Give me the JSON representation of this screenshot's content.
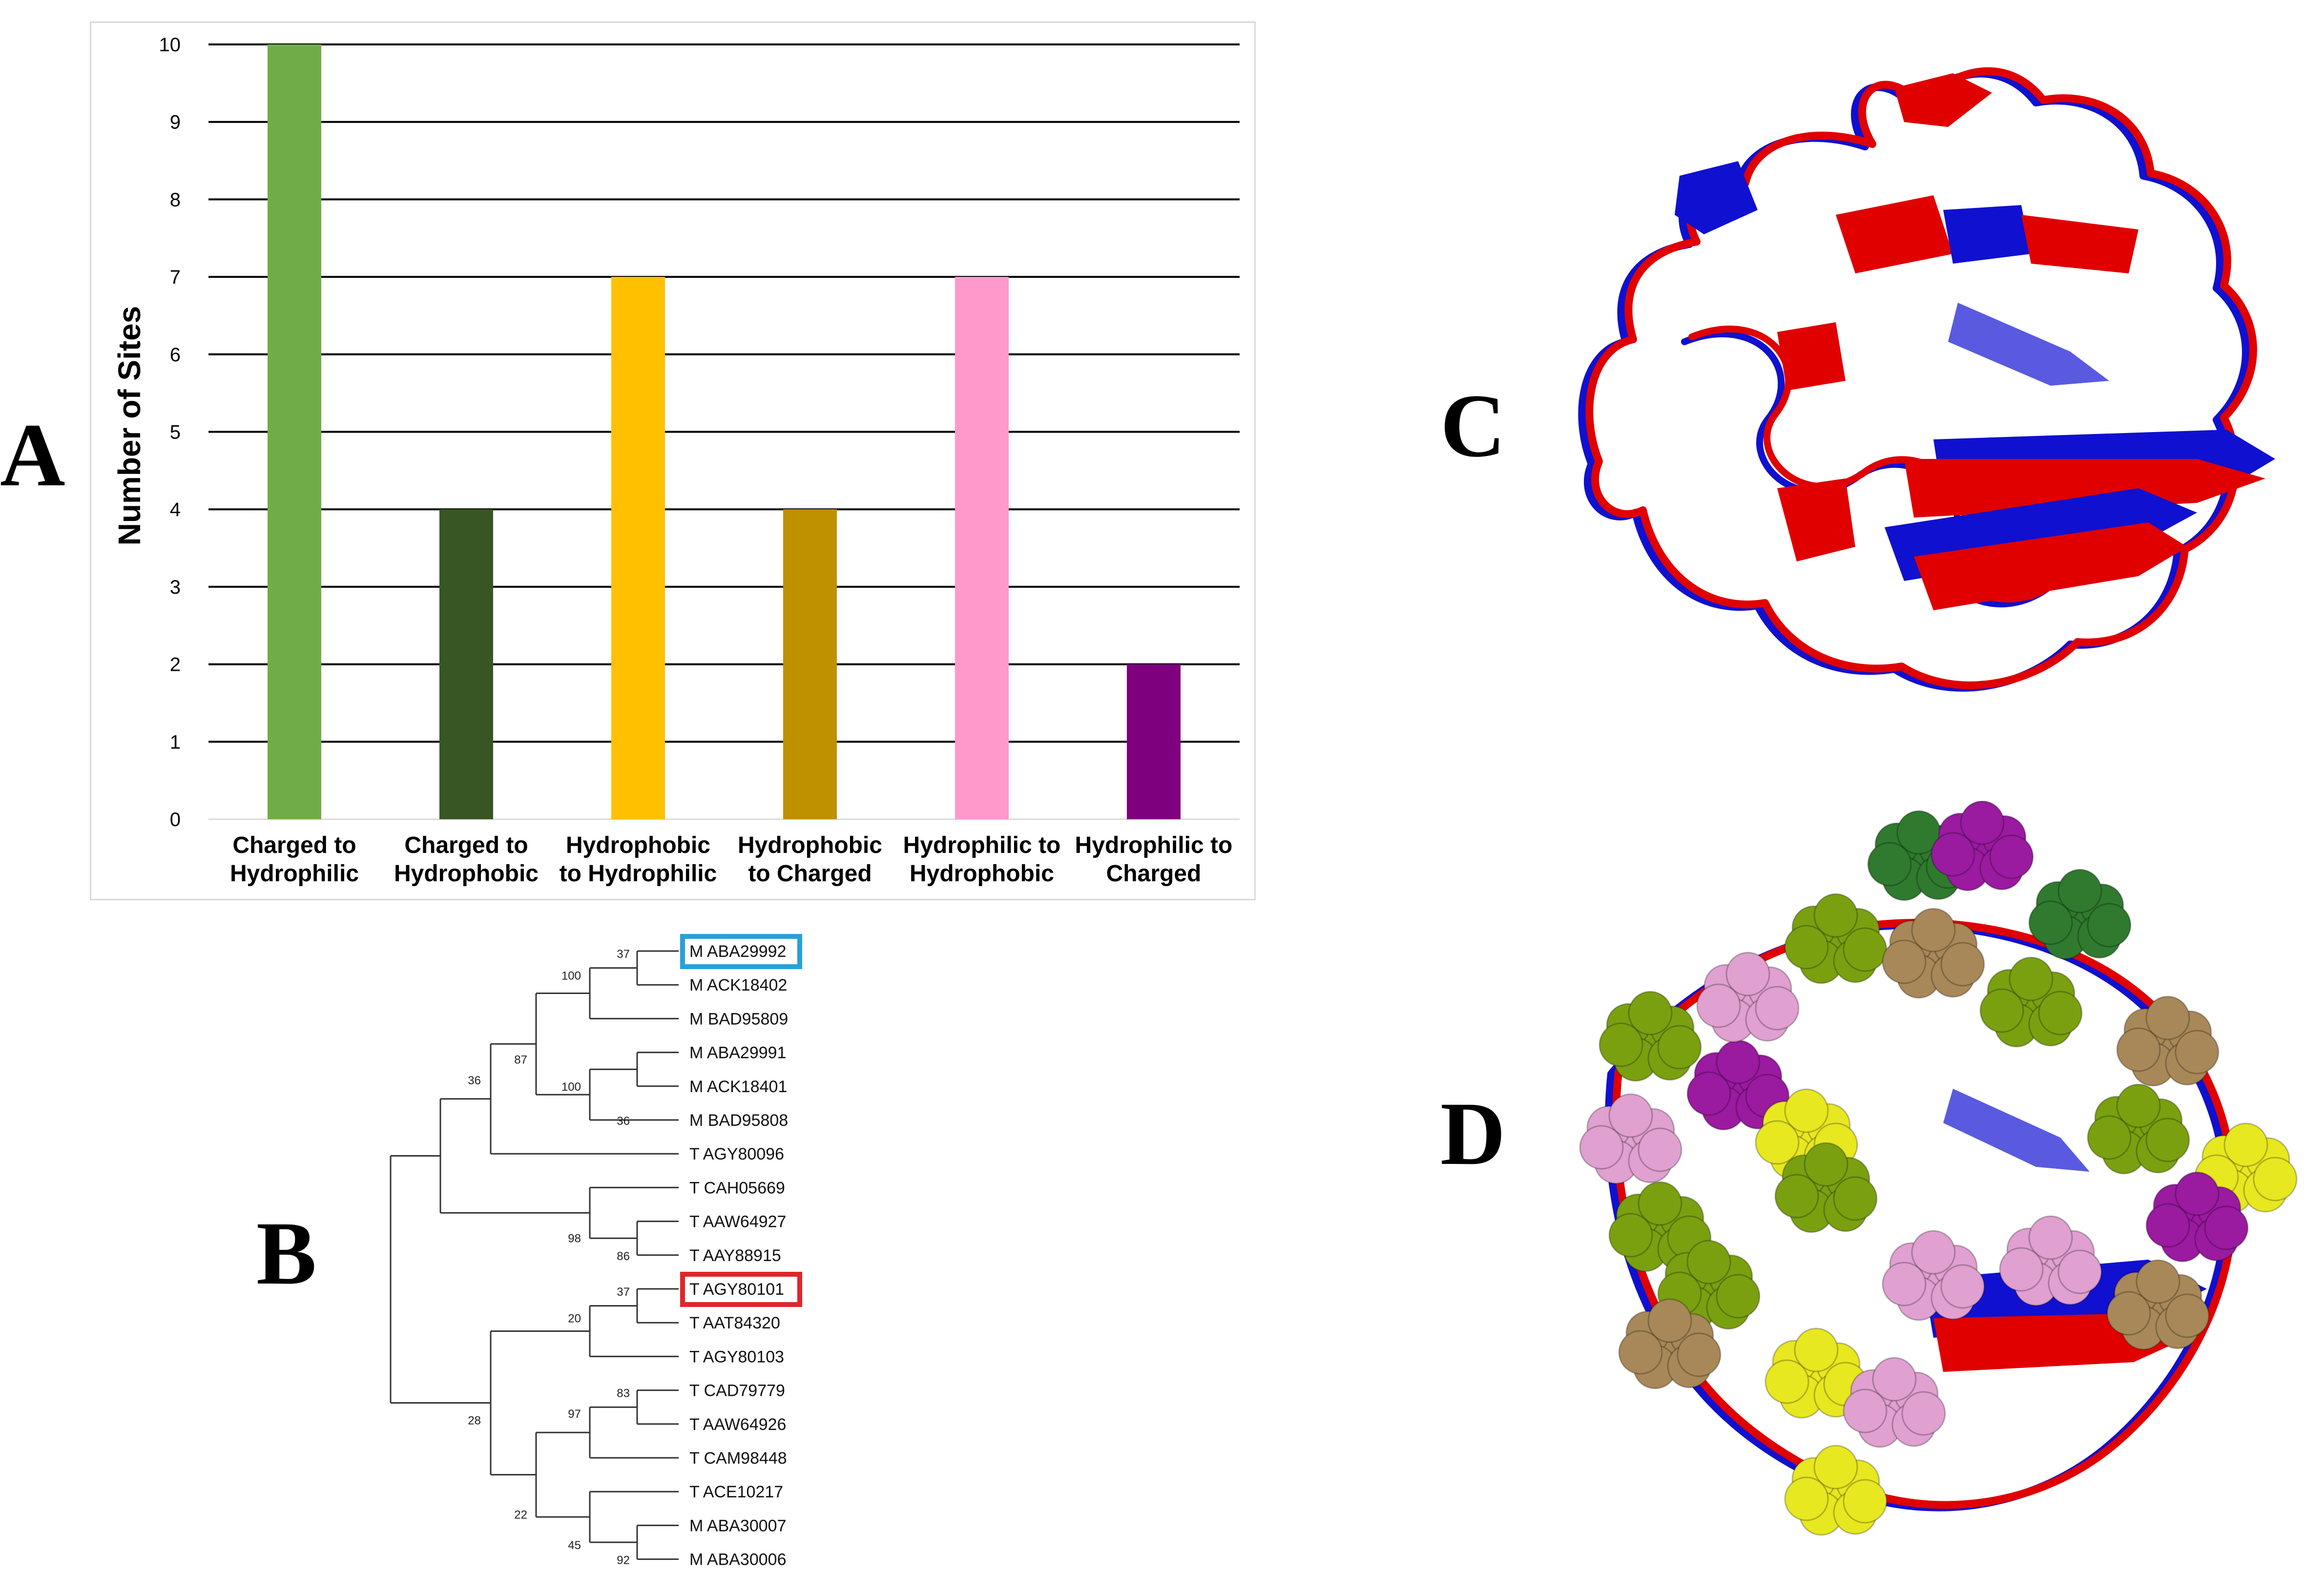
{
  "panels": {
    "a": "A",
    "b": "B",
    "c": "C",
    "d": "D"
  },
  "chart_data": {
    "type": "bar",
    "title": "",
    "xlabel": "",
    "ylabel": "Number of Sites",
    "ylim": [
      0,
      10
    ],
    "yticks": [
      0,
      1,
      2,
      3,
      4,
      5,
      6,
      7,
      8,
      9,
      10
    ],
    "grid": true,
    "categories": [
      [
        "Charged to",
        "Hydrophilic"
      ],
      [
        "Charged to",
        "Hydrophobic"
      ],
      [
        "Hydrophobic",
        "to Hydrophilic"
      ],
      [
        "Hydrophobic",
        "to Charged"
      ],
      [
        "Hydrophilic to",
        "Hydrophobic"
      ],
      [
        "Hydrophilic to",
        "Charged"
      ]
    ],
    "values": [
      10,
      4,
      7,
      4,
      7,
      2
    ],
    "colors": [
      "#70ad47",
      "#375623",
      "#ffc000",
      "#bf9000",
      "#ff99cc",
      "#7f007f"
    ]
  },
  "tree": {
    "leaves": [
      {
        "prefix": "M",
        "id": "ABA29992",
        "box": "#29a0d8"
      },
      {
        "prefix": "M",
        "id": "ACK18402"
      },
      {
        "prefix": "M",
        "id": "BAD95809"
      },
      {
        "prefix": "M",
        "id": "ABA29991"
      },
      {
        "prefix": "M",
        "id": "ACK18401"
      },
      {
        "prefix": "M",
        "id": "BAD95808"
      },
      {
        "prefix": "T",
        "id": "AGY80096"
      },
      {
        "prefix": "T",
        "id": "CAH05669"
      },
      {
        "prefix": "T",
        "id": "AAW64927"
      },
      {
        "prefix": "T",
        "id": "AAY88915"
      },
      {
        "prefix": "T",
        "id": "AGY80101",
        "box": "#e0262b"
      },
      {
        "prefix": "T",
        "id": "AAT84320"
      },
      {
        "prefix": "T",
        "id": "AGY80103"
      },
      {
        "prefix": "T",
        "id": "CAD79779"
      },
      {
        "prefix": "T",
        "id": "AAW64926"
      },
      {
        "prefix": "T",
        "id": "CAM98448"
      },
      {
        "prefix": "T",
        "id": "ACE10217"
      },
      {
        "prefix": "M",
        "id": "ABA30007"
      },
      {
        "prefix": "M",
        "id": "ABA30006"
      }
    ],
    "bootstrap": [
      "37",
      "100",
      "87",
      "100",
      "36",
      "36",
      "98",
      "86",
      "37",
      "20",
      "28",
      "83",
      "97",
      "22",
      "45",
      "92"
    ]
  },
  "structures": {
    "colors": {
      "red": "#e00000",
      "blue": "#1010d0",
      "lime": "#7aa010",
      "darkgreen": "#2f7a2f",
      "tan": "#a88858",
      "magenta": "#9a1aa0",
      "pink": "#e0a0d0",
      "yellow": "#e8e820"
    }
  }
}
